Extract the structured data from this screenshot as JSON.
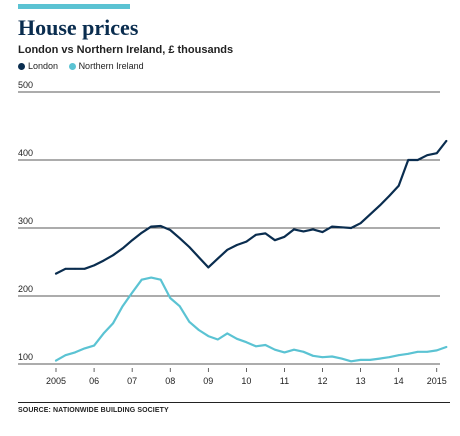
{
  "header": {
    "title": "House prices",
    "subtitle": "London vs Northern Ireland, £ thousands"
  },
  "source": "SOURCE: NATIONWIDE BUILDING SOCIETY",
  "colors": {
    "accent_bar": "#5bc3d3",
    "london": "#0a2d4f",
    "northern_ireland": "#5bc3d3",
    "gridline": "#222222",
    "text": "#222222"
  },
  "chart_data": {
    "type": "line",
    "title": "House prices",
    "subtitle": "London vs Northern Ireland, £ thousands",
    "xlabel": "",
    "ylabel": "",
    "xlim": [
      2005,
      2015.4
    ],
    "ylim": [
      100,
      500
    ],
    "yticks": [
      100,
      200,
      300,
      400,
      500
    ],
    "xticks": [
      {
        "value": 2005,
        "label": "2005"
      },
      {
        "value": 2006,
        "label": "06"
      },
      {
        "value": 2007,
        "label": "07"
      },
      {
        "value": 2008,
        "label": "08"
      },
      {
        "value": 2009,
        "label": "09"
      },
      {
        "value": 2010,
        "label": "10"
      },
      {
        "value": 2011,
        "label": "11"
      },
      {
        "value": 2012,
        "label": "12"
      },
      {
        "value": 2013,
        "label": "13"
      },
      {
        "value": 2014,
        "label": "14"
      },
      {
        "value": 2015,
        "label": "2015"
      }
    ],
    "grid": "horizontal",
    "legend": "top-left",
    "series": [
      {
        "name": "London",
        "color": "#0a2d4f",
        "x": [
          2005,
          2005.25,
          2005.5,
          2005.75,
          2006,
          2006.25,
          2006.5,
          2006.75,
          2007,
          2007.25,
          2007.5,
          2007.75,
          2008,
          2008.25,
          2008.5,
          2008.75,
          2009,
          2009.25,
          2009.5,
          2009.75,
          2010,
          2010.25,
          2010.5,
          2010.75,
          2011,
          2011.25,
          2011.5,
          2011.75,
          2012,
          2012.25,
          2012.5,
          2012.75,
          2013,
          2013.25,
          2013.5,
          2013.75,
          2014,
          2014.25,
          2014.5,
          2014.75,
          2015,
          2015.25
        ],
        "values": [
          233,
          240,
          240,
          240,
          245,
          252,
          260,
          270,
          282,
          293,
          302,
          303,
          297,
          285,
          272,
          257,
          242,
          255,
          268,
          275,
          280,
          290,
          292,
          282,
          287,
          298,
          295,
          298,
          294,
          302,
          301,
          300,
          307,
          320,
          333,
          347,
          362,
          400,
          400,
          407,
          410,
          428
        ]
      },
      {
        "name": "Northern Ireland",
        "color": "#5bc3d3",
        "x": [
          2005,
          2005.25,
          2005.5,
          2005.75,
          2006,
          2006.25,
          2006.5,
          2006.75,
          2007,
          2007.25,
          2007.5,
          2007.75,
          2008,
          2008.25,
          2008.5,
          2008.75,
          2009,
          2009.25,
          2009.5,
          2009.75,
          2010,
          2010.25,
          2010.5,
          2010.75,
          2011,
          2011.25,
          2011.5,
          2011.75,
          2012,
          2012.25,
          2012.5,
          2012.75,
          2013,
          2013.25,
          2013.5,
          2013.75,
          2014,
          2014.25,
          2014.5,
          2014.75,
          2015,
          2015.25
        ],
        "values": [
          105,
          113,
          117,
          123,
          127,
          145,
          160,
          185,
          205,
          224,
          227,
          224,
          197,
          185,
          162,
          150,
          141,
          136,
          145,
          137,
          132,
          126,
          128,
          121,
          117,
          121,
          118,
          112,
          110,
          111,
          108,
          104,
          106,
          106,
          108,
          110,
          113,
          115,
          118,
          118,
          120,
          125
        ]
      }
    ]
  }
}
